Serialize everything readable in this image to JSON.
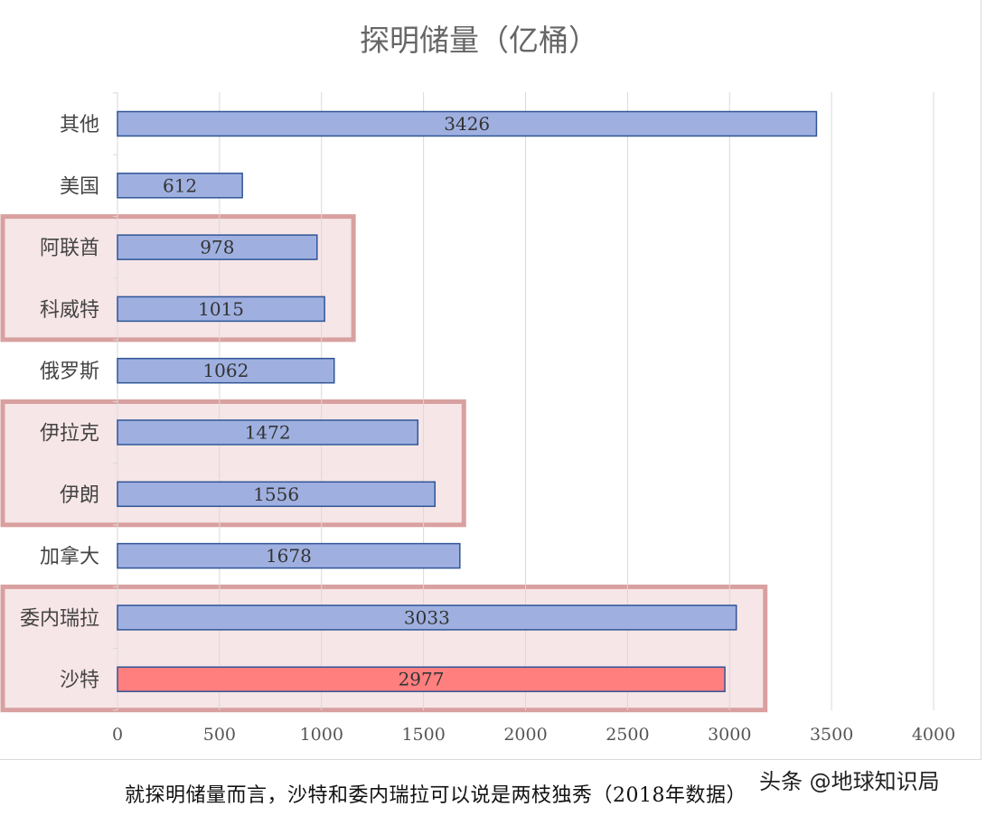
{
  "chart_data": {
    "type": "bar",
    "orientation": "horizontal",
    "title": "探明储量（亿桶）",
    "categories": [
      "其他",
      "美国",
      "阿联酋",
      "科威特",
      "俄罗斯",
      "伊拉克",
      "伊朗",
      "加拿大",
      "委内瑞拉",
      "沙特"
    ],
    "values": [
      3426,
      612,
      978,
      1015,
      1062,
      1472,
      1556,
      1678,
      3033,
      2977
    ],
    "data_labels": [
      "3426",
      "612",
      "978",
      "1015",
      "1062",
      "1472",
      "1556",
      "1678",
      "3033",
      "2977"
    ],
    "xlim": [
      0,
      4000
    ],
    "x_ticks": [
      "0",
      "500",
      "1000",
      "1500",
      "2000",
      "2500",
      "3000",
      "3500",
      "4000"
    ],
    "grid": "vertical",
    "bar_color": "#9fb0e0",
    "bar_border_color": "#2f5597",
    "highlight_category": "沙特",
    "highlight_color": "#ff7f7f",
    "highlight_groups": [
      [
        "阿联酋",
        "科威特"
      ],
      [
        "伊拉克",
        "伊朗"
      ],
      [
        "委内瑞拉",
        "沙特"
      ]
    ],
    "highlight_box_color": "#d9a0a0",
    "highlight_box_fill": "#f7e6e7"
  },
  "caption": "就探明储量而言，沙特和委内瑞拉可以说是两枝独秀（2018年数据）",
  "watermark": "头条 @地球知识局"
}
